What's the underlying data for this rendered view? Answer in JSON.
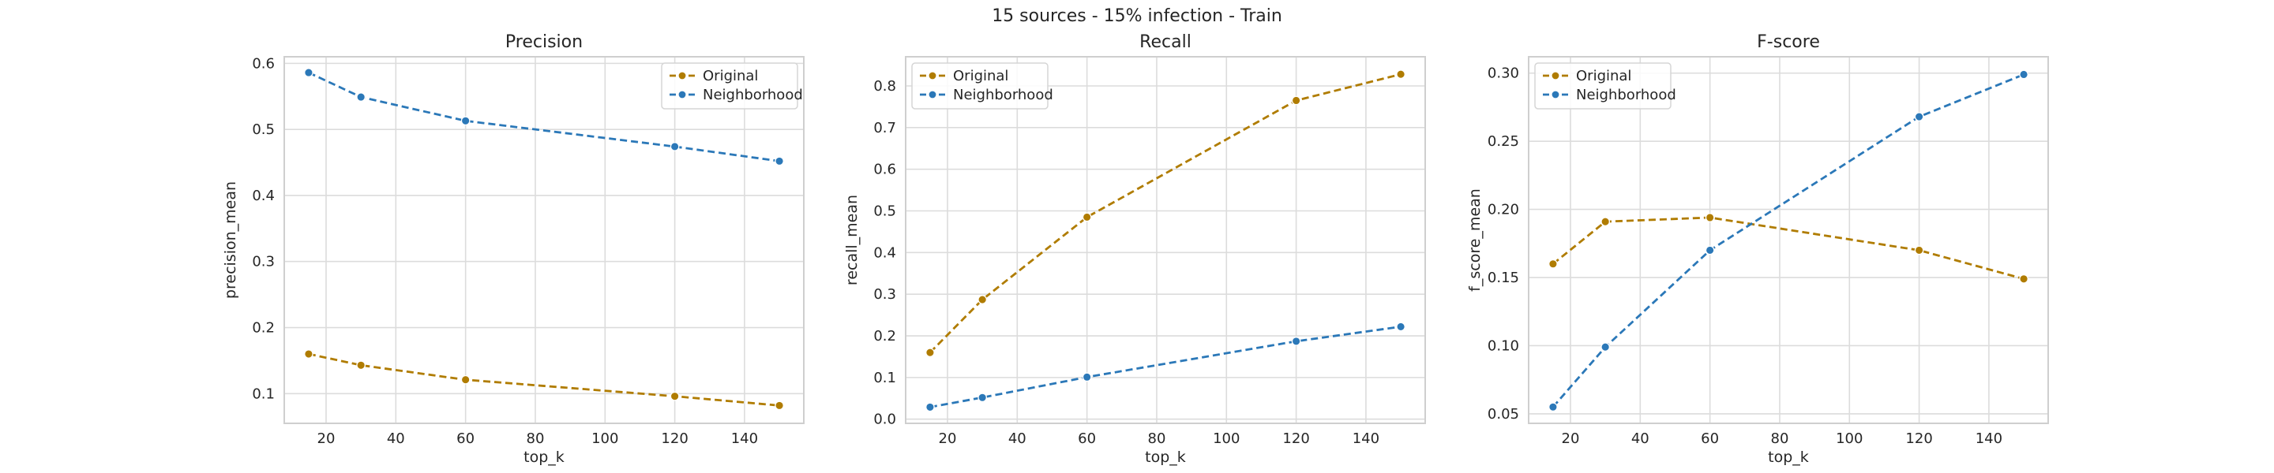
{
  "suptitle": "15 sources - 15% infection - Train",
  "colors": {
    "Original": "#b07c00",
    "Neighborhood": "#2b78b8"
  },
  "chart_data": [
    {
      "type": "line",
      "title": "Precision",
      "xlabel": "top_k",
      "ylabel": "precision_mean",
      "x": [
        15,
        30,
        60,
        120,
        150
      ],
      "xlim": [
        8,
        157
      ],
      "ylim": [
        0.055,
        0.61
      ],
      "xticks": [
        20,
        40,
        60,
        80,
        100,
        120,
        140
      ],
      "yticks": [
        0.1,
        0.2,
        0.3,
        0.4,
        0.5,
        0.6
      ],
      "yticklabels": [
        "0.1",
        "0.2",
        "0.3",
        "0.4",
        "0.5",
        "0.6"
      ],
      "legend": "upper-right",
      "grid": true,
      "series": [
        {
          "name": "Original",
          "values": [
            0.16,
            0.143,
            0.121,
            0.096,
            0.082
          ]
        },
        {
          "name": "Neighborhood",
          "values": [
            0.586,
            0.549,
            0.513,
            0.474,
            0.452
          ]
        }
      ]
    },
    {
      "type": "line",
      "title": "Recall",
      "xlabel": "top_k",
      "ylabel": "recall_mean",
      "x": [
        15,
        30,
        60,
        120,
        150
      ],
      "xlim": [
        8,
        157
      ],
      "ylim": [
        -0.01,
        0.87
      ],
      "xticks": [
        20,
        40,
        60,
        80,
        100,
        120,
        140
      ],
      "yticks": [
        0.0,
        0.1,
        0.2,
        0.3,
        0.4,
        0.5,
        0.6,
        0.7,
        0.8
      ],
      "yticklabels": [
        "0.0",
        "0.1",
        "0.2",
        "0.3",
        "0.4",
        "0.5",
        "0.6",
        "0.7",
        "0.8"
      ],
      "legend": "upper-left",
      "grid": true,
      "series": [
        {
          "name": "Original",
          "values": [
            0.16,
            0.287,
            0.485,
            0.765,
            0.828
          ]
        },
        {
          "name": "Neighborhood",
          "values": [
            0.029,
            0.052,
            0.101,
            0.187,
            0.222
          ]
        }
      ]
    },
    {
      "type": "line",
      "title": "F-score",
      "xlabel": "top_k",
      "ylabel": "f_score_mean",
      "x": [
        15,
        30,
        60,
        120,
        150
      ],
      "xlim": [
        8,
        157
      ],
      "ylim": [
        0.043,
        0.312
      ],
      "xticks": [
        20,
        40,
        60,
        80,
        100,
        120,
        140
      ],
      "yticks": [
        0.05,
        0.1,
        0.15,
        0.2,
        0.25,
        0.3
      ],
      "yticklabels": [
        "0.05",
        "0.10",
        "0.15",
        "0.20",
        "0.25",
        "0.30"
      ],
      "legend": "upper-left",
      "grid": true,
      "series": [
        {
          "name": "Original",
          "values": [
            0.16,
            0.191,
            0.194,
            0.17,
            0.149
          ]
        },
        {
          "name": "Neighborhood",
          "values": [
            0.055,
            0.099,
            0.17,
            0.268,
            0.299
          ]
        }
      ]
    }
  ]
}
